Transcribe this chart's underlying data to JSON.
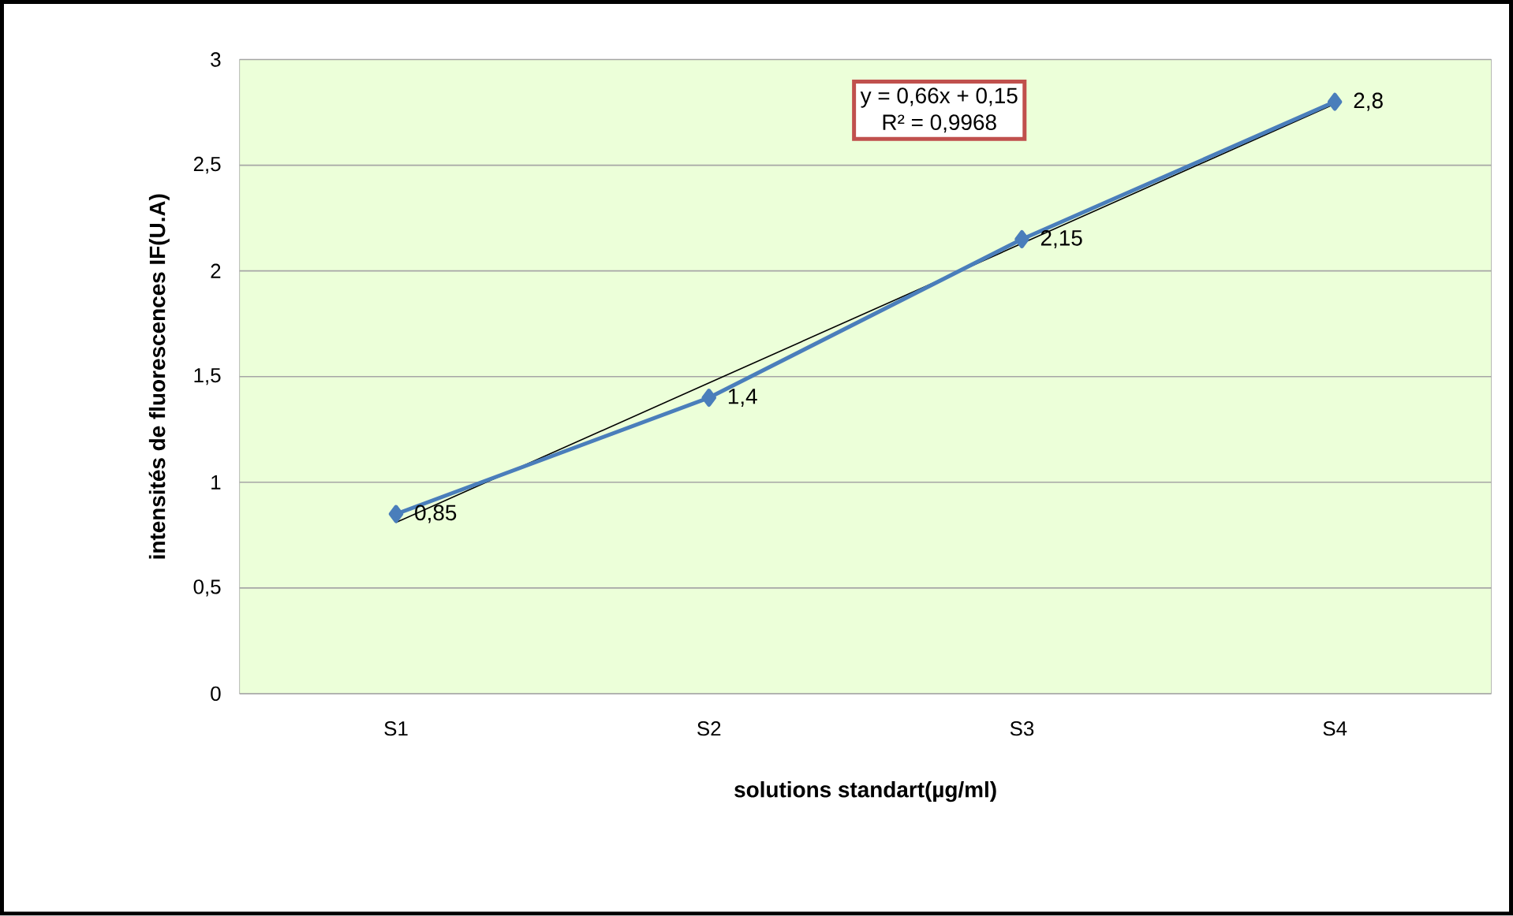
{
  "chart_data": {
    "type": "line",
    "xlabel": "solutions standart(µg/ml)",
    "ylabel": "intensités de fluorescences IF(U.A)",
    "categories": [
      "S1",
      "S2",
      "S3",
      "S4"
    ],
    "series": [
      {
        "color": "#4a7ebb",
        "values": [
          0.85,
          1.4,
          2.15,
          2.8
        ],
        "value_labels": [
          "0,85",
          "1,4",
          "2,15",
          "2,8"
        ],
        "marker": "diamond"
      },
      {
        "type": "line",
        "color": "#000000",
        "values": [
          0.81,
          1.47,
          2.13,
          2.79
        ],
        "marker": "none"
      }
    ],
    "ylim": [
      0,
      3
    ],
    "yticks": [
      0,
      {
        "value": 0.5,
        "label": "0,5"
      },
      1,
      {
        "value": 1.5,
        "label": "1,5"
      },
      2,
      {
        "value": 2.5,
        "label": "2,5"
      },
      3
    ],
    "grid": "y",
    "annotations": [
      "y = 0,66x + 0,15",
      "R² = 0,9968"
    ]
  }
}
